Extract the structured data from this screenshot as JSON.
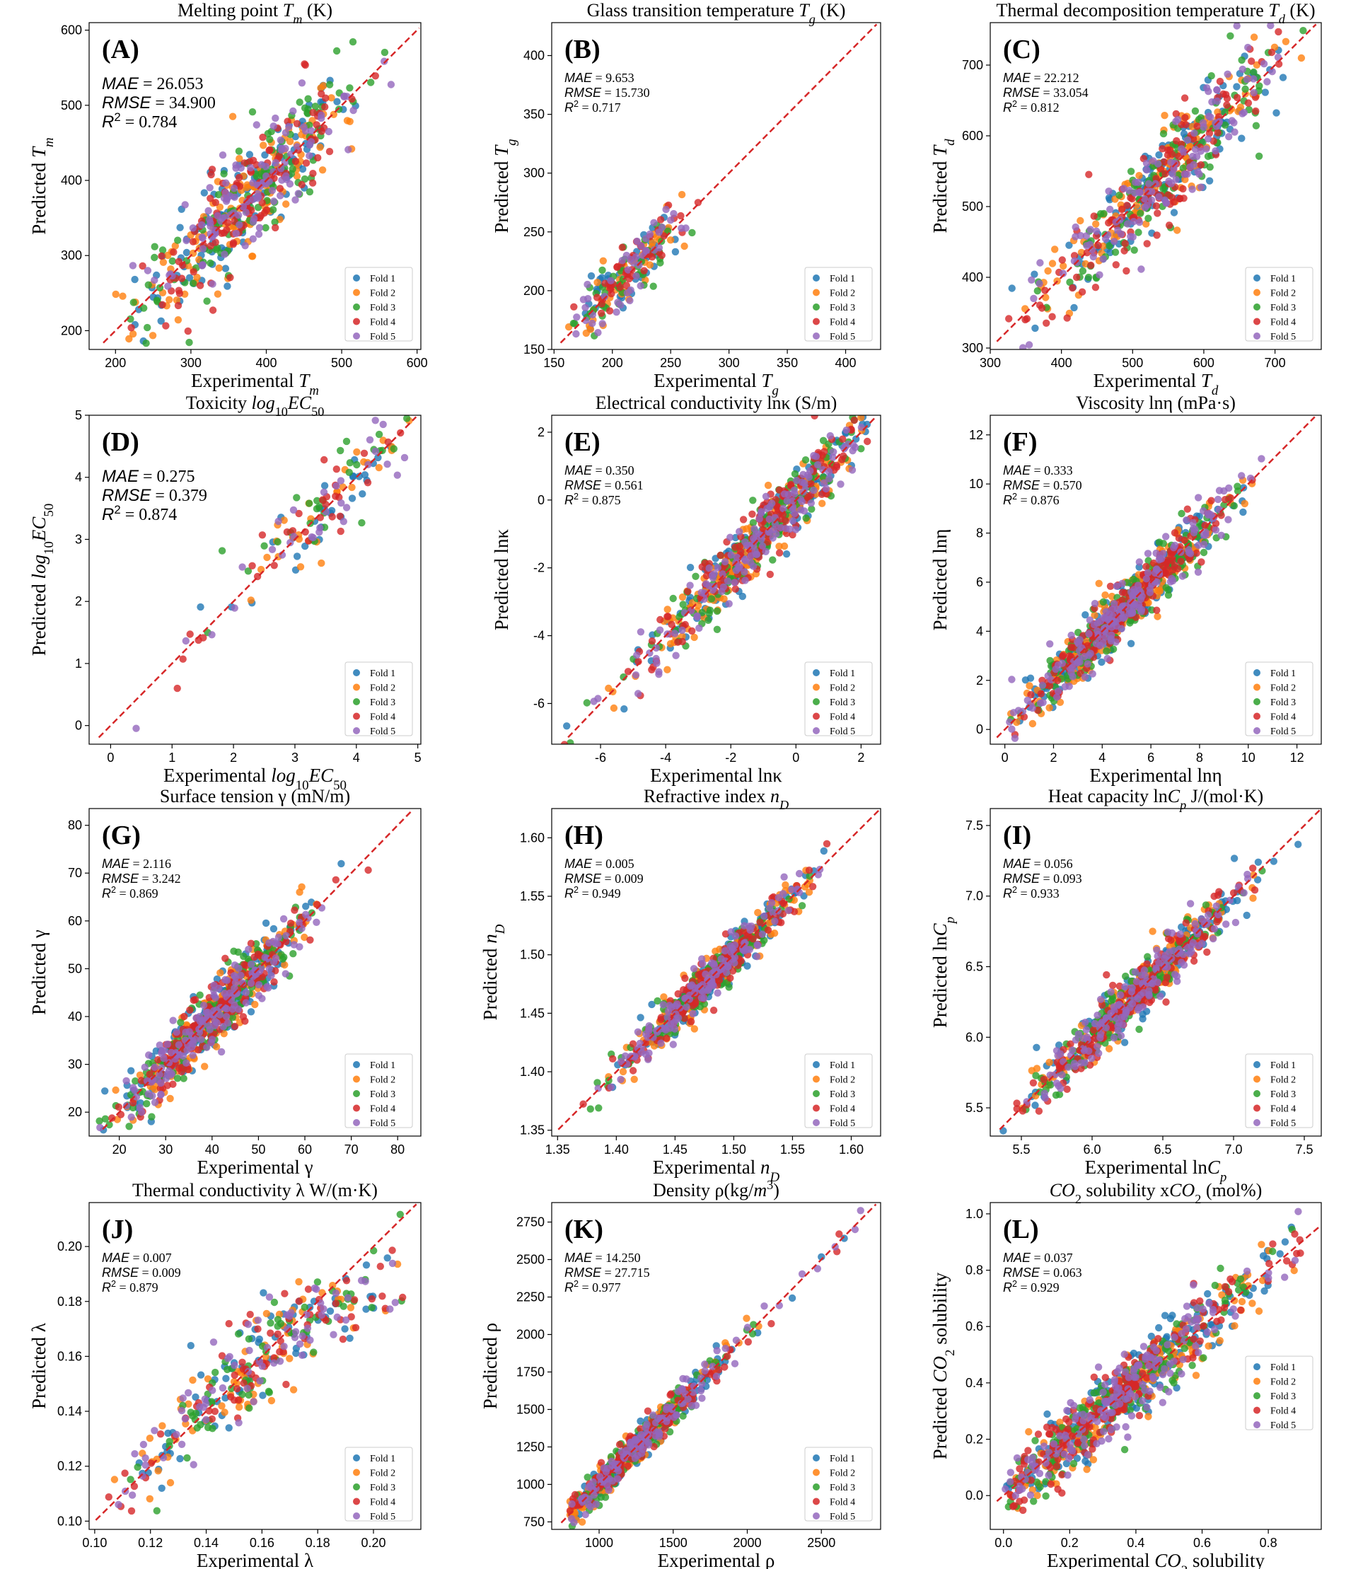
{
  "figure": {
    "legend_labels": [
      "Fold 1",
      "Fold 2",
      "Fold 3",
      "Fold 4",
      "Fold 5"
    ],
    "fold_colors": [
      "#1f77b4",
      "#ff7f0e",
      "#2ca02c",
      "#d62728",
      "#9467bd"
    ],
    "diagonal_color": "#d62728"
  },
  "chart_data": [
    {
      "type": "scatter",
      "panel": "(A)",
      "title": "Melting point T_m (K)",
      "xlabel": "Experimental T_m",
      "ylabel": "Predicted T_m",
      "xlim": [
        165,
        605
      ],
      "ylim": [
        175,
        610
      ],
      "xticks": [
        200,
        300,
        400,
        500,
        600
      ],
      "yticks": [
        200,
        300,
        400,
        500,
        600
      ],
      "metrics": {
        "MAE": "26.053",
        "RMSE": "34.900",
        "R2": "0.784"
      },
      "metric_size": "large",
      "cloud": {
        "x_range": [
          180,
          590
        ],
        "center": 370,
        "spread": 70,
        "noise": 34,
        "n_per_fold": 120,
        "curve": 0
      },
      "legend": "lower-right",
      "grid": false
    },
    {
      "type": "scatter",
      "panel": "(B)",
      "title": "Glass transition temperature T_g (K)",
      "xlabel": "Experimental T_g",
      "ylabel": "Predicted T_g",
      "xlim": [
        148,
        430
      ],
      "ylim": [
        150,
        428
      ],
      "xticks": [
        150,
        200,
        250,
        300,
        350,
        400
      ],
      "yticks": [
        150,
        200,
        250,
        300,
        350,
        400
      ],
      "metrics": {
        "MAE": "9.653",
        "RMSE": "15.730",
        "R2": "0.717"
      },
      "metric_size": "small",
      "cloud": {
        "x_range": [
          158,
          310
        ],
        "center": 215,
        "spread": 25,
        "noise": 12,
        "n_per_fold": 45,
        "curve": 0
      },
      "legend": "lower-right",
      "grid": false
    },
    {
      "type": "scatter",
      "panel": "(C)",
      "title": "Thermal decomposition temperature T_d (K)",
      "xlabel": "Experimental T_d",
      "ylabel": "Predicted T_d",
      "xlim": [
        300,
        765
      ],
      "ylim": [
        298,
        760
      ],
      "xticks": [
        300,
        400,
        500,
        600,
        700
      ],
      "yticks": [
        300,
        400,
        500,
        600,
        700
      ],
      "metrics": {
        "MAE": "22.212",
        "RMSE": "33.054",
        "R2": "0.812"
      },
      "metric_size": "small",
      "cloud": {
        "x_range": [
          320,
          750
        ],
        "center": 540,
        "spread": 80,
        "noise": 32,
        "n_per_fold": 120,
        "curve": 0
      },
      "legend": "lower-right",
      "grid": false
    },
    {
      "type": "scatter",
      "panel": "(D)",
      "title": "Toxicity log10EC50",
      "xlabel": "Experimental log10EC50",
      "ylabel": "Predicted log10EC50",
      "xlim": [
        -0.35,
        5.05
      ],
      "ylim": [
        -0.3,
        5.0
      ],
      "xticks": [
        0,
        1,
        2,
        3,
        4,
        5
      ],
      "yticks": [
        0,
        1,
        2,
        3,
        4,
        5
      ],
      "metrics": {
        "MAE": "0.275",
        "RMSE": "0.379",
        "R2": "0.874"
      },
      "metric_size": "large",
      "cloud": {
        "x_range": [
          -0.2,
          4.9
        ],
        "center": 3.3,
        "spread": 1.0,
        "noise": 0.35,
        "n_per_fold": 30,
        "curve": 0
      },
      "legend": "lower-right",
      "grid": false
    },
    {
      "type": "scatter",
      "panel": "(E)",
      "title": "Electrical conductivity lnκ (S/m)",
      "xlabel": "Experimental lnκ",
      "ylabel": "Predicted lnκ",
      "xlim": [
        -7.5,
        2.6
      ],
      "ylim": [
        -7.2,
        2.5
      ],
      "xticks": [
        -6,
        -4,
        -2,
        0,
        2
      ],
      "yticks": [
        -6,
        -4,
        -2,
        0,
        2
      ],
      "metrics": {
        "MAE": "0.350",
        "RMSE": "0.561",
        "R2": "0.875"
      },
      "metric_size": "small",
      "cloud": {
        "x_range": [
          -7.2,
          2.2
        ],
        "center": -1.0,
        "spread": 1.8,
        "noise": 0.5,
        "n_per_fold": 140,
        "curve": 0
      },
      "legend": "lower-right",
      "grid": false
    },
    {
      "type": "scatter",
      "panel": "(F)",
      "title": "Viscosity lnη (mPa·s)",
      "xlabel": "Experimental lnη",
      "ylabel": "Predicted lnη",
      "xlim": [
        -0.6,
        13.0
      ],
      "ylim": [
        -0.6,
        12.8
      ],
      "xticks": [
        0,
        2,
        4,
        6,
        8,
        10,
        12
      ],
      "yticks": [
        0,
        2,
        4,
        6,
        8,
        10,
        12
      ],
      "metrics": {
        "MAE": "0.333",
        "RMSE": "0.570",
        "R2": "0.876"
      },
      "metric_size": "small",
      "cloud": {
        "x_range": [
          -0.3,
          12.5
        ],
        "center": 5.0,
        "spread": 2.0,
        "noise": 0.55,
        "n_per_fold": 180,
        "curve": 0
      },
      "legend": "lower-right",
      "grid": false
    },
    {
      "type": "scatter",
      "panel": "(G)",
      "title": "Surface tension γ (mN/m)",
      "xlabel": "Experimental γ",
      "ylabel": "Predicted γ",
      "xlim": [
        13.5,
        85.0
      ],
      "ylim": [
        15.0,
        83.5
      ],
      "xticks": [
        20,
        30,
        40,
        50,
        60,
        70,
        80
      ],
      "yticks": [
        20,
        30,
        40,
        50,
        60,
        70,
        80
      ],
      "metrics": {
        "MAE": "2.116",
        "RMSE": "3.242",
        "R2": "0.869"
      },
      "metric_size": "small",
      "cloud": {
        "x_range": [
          15,
          80
        ],
        "center": 40,
        "spread": 10,
        "noise": 3.2,
        "n_per_fold": 160,
        "curve": 0
      },
      "legend": "lower-right",
      "grid": false
    },
    {
      "type": "scatter",
      "panel": "(H)",
      "title": "Refractive index n_D",
      "xlabel": "Experimental n_D",
      "ylabel": "Predicted n_D",
      "xlim": [
        1.345,
        1.625
      ],
      "ylim": [
        1.345,
        1.625
      ],
      "xticks": [
        1.35,
        1.4,
        1.45,
        1.5,
        1.55,
        1.6
      ],
      "yticks": [
        1.35,
        1.4,
        1.45,
        1.5,
        1.55,
        1.6
      ],
      "metrics": {
        "MAE": "0.005",
        "RMSE": "0.009",
        "R2": "0.949"
      },
      "metric_size": "small",
      "cloud": {
        "x_range": [
          1.36,
          1.61
        ],
        "center": 1.48,
        "spread": 0.04,
        "noise": 0.009,
        "n_per_fold": 140,
        "curve": 0
      },
      "legend": "lower-right",
      "grid": false
    },
    {
      "type": "scatter",
      "panel": "(I)",
      "title": "Heat capacity lnC_p J/(mol·K)",
      "xlabel": "Experimental lnC_p",
      "ylabel": "Predicted lnC_p",
      "xlim": [
        5.28,
        7.62
      ],
      "ylim": [
        5.3,
        7.62
      ],
      "xticks": [
        5.5,
        6.0,
        6.5,
        7.0,
        7.5
      ],
      "yticks": [
        5.5,
        6.0,
        6.5,
        7.0,
        7.5
      ],
      "metrics": {
        "MAE": "0.056",
        "RMSE": "0.093",
        "R2": "0.933"
      },
      "metric_size": "small",
      "cloud": {
        "x_range": [
          5.35,
          7.55
        ],
        "center": 6.3,
        "spread": 0.35,
        "noise": 0.09,
        "n_per_fold": 150,
        "curve": 0
      },
      "legend": "lower-right",
      "grid": false
    },
    {
      "type": "scatter",
      "panel": "(J)",
      "title": "Thermal conductivity λ W/(m·K)",
      "xlabel": "Experimental λ",
      "ylabel": "Predicted λ",
      "xlim": [
        0.098,
        0.217
      ],
      "ylim": [
        0.097,
        0.216
      ],
      "xticks": [
        0.1,
        0.12,
        0.14,
        0.16,
        0.18,
        0.2
      ],
      "yticks": [
        0.1,
        0.12,
        0.14,
        0.16,
        0.18,
        0.2
      ],
      "metrics": {
        "MAE": "0.007",
        "RMSE": "0.009",
        "R2": "0.879"
      },
      "metric_size": "small",
      "cloud": {
        "x_range": [
          0.105,
          0.213
        ],
        "center": 0.16,
        "spread": 0.025,
        "noise": 0.008,
        "n_per_fold": 70,
        "curve": 0.45
      },
      "legend": "lower-right",
      "grid": false
    },
    {
      "type": "scatter",
      "panel": "(K)",
      "title": "Density ρ(kg/m3)",
      "xlabel": "Experimental ρ",
      "ylabel": "Predicted ρ",
      "xlim": [
        680,
        2900
      ],
      "ylim": [
        700,
        2880
      ],
      "xticks": [
        1000,
        1500,
        2000,
        2500
      ],
      "yticks": [
        750,
        1000,
        1250,
        1500,
        1750,
        2000,
        2250,
        2500,
        2750
      ],
      "metrics": {
        "MAE": "14.250",
        "RMSE": "27.715",
        "R2": "0.977"
      },
      "metric_size": "small",
      "cloud": {
        "x_range": [
          800,
          2800
        ],
        "center": 1250,
        "spread": 280,
        "noise": 55,
        "n_per_fold": 130,
        "curve": 0
      },
      "legend": "lower-right",
      "grid": false
    },
    {
      "type": "scatter",
      "panel": "(L)",
      "title": "CO2 solubility xCO2 (mol%)",
      "xlabel": "Experimental CO2 solubility",
      "ylabel": "Predicted CO2 solubility",
      "xlim": [
        -0.04,
        0.96
      ],
      "ylim": [
        -0.12,
        1.04
      ],
      "xticks": [
        0.0,
        0.2,
        0.4,
        0.6,
        0.8
      ],
      "yticks": [
        0.0,
        0.2,
        0.4,
        0.6,
        0.8,
        1.0
      ],
      "metrics": {
        "MAE": "0.037",
        "RMSE": "0.063",
        "R2": "0.929"
      },
      "metric_size": "small",
      "cloud": {
        "x_range": [
          0.0,
          0.9
        ],
        "center": 0.35,
        "spread": 0.22,
        "noise": 0.06,
        "n_per_fold": 170,
        "curve": 0
      },
      "legend": "right",
      "grid": false
    }
  ]
}
